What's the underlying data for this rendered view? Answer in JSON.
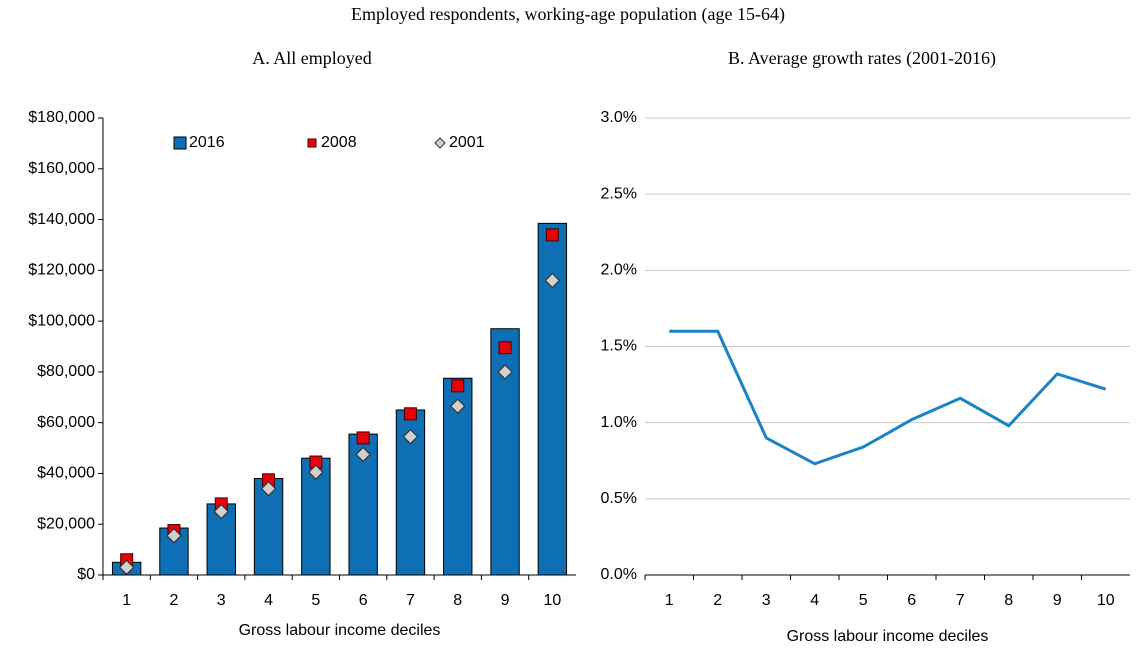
{
  "title": "Employed respondents, working-age population (age 15-64)",
  "chart_data": [
    {
      "type": "bar",
      "title": "A. All employed",
      "xlabel": "Gross  labour income deciles",
      "categories": [
        "1",
        "2",
        "3",
        "4",
        "5",
        "6",
        "7",
        "8",
        "9",
        "10"
      ],
      "series": [
        {
          "name": "2016",
          "color": "#0f6fb5",
          "marker": "bar",
          "values": [
            5000,
            18500,
            28000,
            38000,
            46000,
            55500,
            65000,
            77500,
            97000,
            138500
          ]
        },
        {
          "name": "2008",
          "color": "#e8000b",
          "marker": "square",
          "values": [
            6000,
            17500,
            28000,
            37500,
            44500,
            54000,
            63500,
            74500,
            89500,
            134000
          ]
        },
        {
          "name": "2001",
          "color": "#d0d0d0",
          "marker": "diamond",
          "values": [
            3000,
            15500,
            25000,
            34000,
            40500,
            47500,
            54500,
            66500,
            80000,
            116000
          ]
        }
      ],
      "ylim": [
        0,
        180000
      ],
      "yticks": [
        {
          "value": 0,
          "label": "$0"
        },
        {
          "value": 20000,
          "label": "$20,000"
        },
        {
          "value": 40000,
          "label": "$40,000"
        },
        {
          "value": 60000,
          "label": "$60,000"
        },
        {
          "value": 80000,
          "label": "$80,000"
        },
        {
          "value": 100000,
          "label": "$100,000"
        },
        {
          "value": 120000,
          "label": "$120,000"
        },
        {
          "value": 140000,
          "label": "$140,000"
        },
        {
          "value": 160000,
          "label": "$160,000"
        },
        {
          "value": 180000,
          "label": "$180,000"
        }
      ],
      "grid": false
    },
    {
      "type": "line",
      "title": "B. Average growth rates (2001-2016)",
      "xlabel": "Gross labour income deciles",
      "categories": [
        "1",
        "2",
        "3",
        "4",
        "5",
        "6",
        "7",
        "8",
        "9",
        "10"
      ],
      "series": [
        {
          "color": "#1a83c6",
          "values": [
            1.6,
            1.6,
            0.9,
            0.73,
            0.84,
            1.02,
            1.16,
            0.98,
            1.32,
            1.22
          ]
        }
      ],
      "ylim": [
        0,
        3
      ],
      "yticks": [
        {
          "value": 0,
          "label": "0.0%"
        },
        {
          "value": 0.5,
          "label": "0.5%"
        },
        {
          "value": 1,
          "label": "1.0%"
        },
        {
          "value": 1.5,
          "label": "1.5%"
        },
        {
          "value": 2,
          "label": "2.0%"
        },
        {
          "value": 2.5,
          "label": "2.5%"
        },
        {
          "value": 3,
          "label": "3.0%"
        }
      ],
      "grid": true
    }
  ]
}
